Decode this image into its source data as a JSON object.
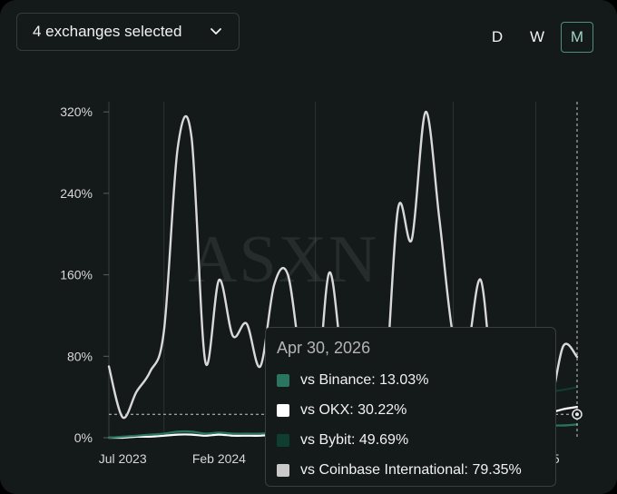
{
  "controls": {
    "exchange_selector": "4 exchanges selected",
    "ranges": [
      "D",
      "W",
      "M"
    ],
    "active_range": "M"
  },
  "watermark": "ASXN",
  "tooltip": {
    "date": "Apr 30, 2026",
    "rows": [
      {
        "label": "vs Binance: 13.03%",
        "color": "#2a7560"
      },
      {
        "label": "vs OKX: 30.22%",
        "color": "#ffffff"
      },
      {
        "label": "vs Bybit: 49.69%",
        "color": "#0f3d30"
      },
      {
        "label": "vs Coinbase International: 79.35%",
        "color": "#c9c9c9"
      }
    ]
  },
  "chart_data": {
    "type": "line",
    "x_ticks_visible": [
      "Jul 2023",
      "Feb 2024",
      "5"
    ],
    "x": [
      "2023-06",
      "2023-07",
      "2023-08",
      "2023-09",
      "2023-10",
      "2023-11",
      "2023-12",
      "2024-01",
      "2024-02",
      "2024-03",
      "2024-04",
      "2024-05",
      "2024-06",
      "2024-07",
      "2024-08",
      "2024-09",
      "2024-10",
      "2024-11",
      "2024-12",
      "2025-01",
      "2025-02",
      "2025-03",
      "2025-04",
      "2025-05",
      "2025-06",
      "2025-07",
      "2025-08",
      "2025-09",
      "2025-10",
      "2025-11",
      "2025-12",
      "2026-01",
      "2026-02",
      "2026-03",
      "2026-04"
    ],
    "y_ticks": [
      "0%",
      "80%",
      "160%",
      "240%",
      "320%"
    ],
    "ylim": [
      0,
      320
    ],
    "series": [
      {
        "name": "vs Coinbase International",
        "color": "#d9d9d9",
        "values": [
          70,
          20,
          45,
          65,
          105,
          285,
          295,
          75,
          155,
          100,
          112,
          70,
          150,
          160,
          70,
          30,
          162,
          70,
          30,
          30,
          40,
          225,
          195,
          320,
          215,
          100,
          85,
          155,
          40,
          40,
          30,
          30,
          30,
          90,
          79.35
        ]
      },
      {
        "name": "vs Bybit",
        "color": "#0f3d30",
        "values": [
          0,
          1,
          1,
          2,
          3,
          5,
          5,
          4,
          4,
          3,
          3,
          3,
          4,
          4,
          3,
          3,
          4,
          4,
          4,
          4,
          4,
          5,
          5,
          5,
          5,
          10,
          15,
          20,
          25,
          30,
          35,
          40,
          45,
          47,
          49.69
        ]
      },
      {
        "name": "vs OKX",
        "color": "#ffffff",
        "values": [
          0,
          0,
          1,
          1,
          2,
          3,
          3,
          2,
          3,
          2,
          2,
          2,
          3,
          3,
          2,
          2,
          3,
          3,
          3,
          3,
          4,
          4,
          4,
          5,
          6,
          8,
          10,
          12,
          14,
          16,
          18,
          20,
          24,
          28,
          30.22
        ]
      },
      {
        "name": "vs Binance",
        "color": "#2a7560",
        "values": [
          0,
          1,
          2,
          3,
          4,
          6,
          6,
          4,
          5,
          4,
          4,
          4,
          5,
          5,
          4,
          4,
          5,
          5,
          5,
          5,
          5,
          6,
          6,
          7,
          7,
          8,
          8,
          9,
          9,
          10,
          10,
          11,
          12,
          12,
          13.03
        ]
      }
    ],
    "hover": {
      "x": "2026-04",
      "reference_value": 23
    },
    "grid": true
  }
}
